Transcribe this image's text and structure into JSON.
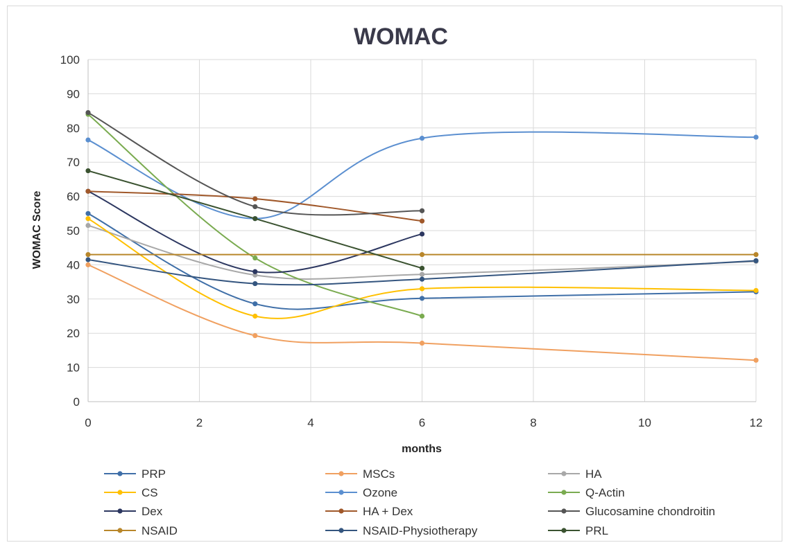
{
  "chart_data": {
    "type": "line",
    "title": "WOMAC",
    "xlabel": "months",
    "ylabel": "WOMAC Score",
    "xlim": [
      0,
      12
    ],
    "ylim": [
      0,
      100
    ],
    "xticks": [
      0,
      2,
      4,
      6,
      8,
      10,
      12
    ],
    "yticks": [
      0,
      10,
      20,
      30,
      40,
      50,
      60,
      70,
      80,
      90,
      100
    ],
    "grid": true,
    "smooth": true,
    "legend_position": "bottom",
    "series": [
      {
        "name": "PRP",
        "color": "#3f6fa8",
        "points": [
          [
            0,
            55
          ],
          [
            3,
            28.6
          ],
          [
            6,
            30.2
          ],
          [
            12,
            32.1
          ]
        ]
      },
      {
        "name": "MSCs",
        "color": "#f0a060",
        "points": [
          [
            0,
            40
          ],
          [
            3,
            19.3
          ],
          [
            6,
            17.1
          ],
          [
            12,
            12.1
          ]
        ]
      },
      {
        "name": "HA",
        "color": "#a8a8a8",
        "points": [
          [
            0,
            51.5
          ],
          [
            3,
            37
          ],
          [
            6,
            37.2
          ],
          [
            12,
            41
          ]
        ]
      },
      {
        "name": "CS",
        "color": "#ffc000",
        "points": [
          [
            0,
            53.5
          ],
          [
            3,
            25
          ],
          [
            6,
            33
          ],
          [
            12,
            32.5
          ]
        ]
      },
      {
        "name": "Ozone",
        "color": "#5b8fd0",
        "points": [
          [
            0,
            76.5
          ],
          [
            3,
            53.5
          ],
          [
            6,
            77
          ],
          [
            12,
            77.3
          ]
        ]
      },
      {
        "name": "Q-Actin",
        "color": "#7aab50",
        "points": [
          [
            0,
            84
          ],
          [
            3,
            42
          ],
          [
            6,
            25
          ]
        ]
      },
      {
        "name": "Dex",
        "color": "#2c3760",
        "points": [
          [
            0,
            61.5
          ],
          [
            3,
            38
          ],
          [
            6,
            49
          ]
        ]
      },
      {
        "name": "HA + Dex",
        "color": "#a0582a",
        "points": [
          [
            0,
            61.5
          ],
          [
            3,
            59.3
          ],
          [
            6,
            52.8
          ]
        ]
      },
      {
        "name": "Glucosamine chondroitin",
        "color": "#555555",
        "points": [
          [
            0,
            84.5
          ],
          [
            3,
            57
          ],
          [
            6,
            55.8
          ]
        ]
      },
      {
        "name": "NSAID",
        "color": "#b8862a",
        "points": [
          [
            0,
            43
          ],
          [
            6,
            43
          ],
          [
            12,
            43
          ]
        ]
      },
      {
        "name": "NSAID-Physiotherapy",
        "color": "#34557f",
        "points": [
          [
            0,
            41.5
          ],
          [
            3,
            34.5
          ],
          [
            6,
            35.8
          ],
          [
            12,
            41.2
          ]
        ]
      },
      {
        "name": "PRL",
        "color": "#3a5230",
        "points": [
          [
            0,
            67.5
          ],
          [
            3,
            53.5
          ],
          [
            6,
            39
          ]
        ]
      }
    ]
  }
}
